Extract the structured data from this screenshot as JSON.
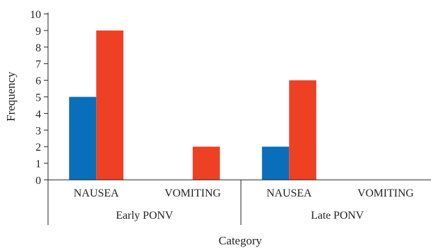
{
  "chart_data": {
    "type": "bar",
    "title": "",
    "xlabel": "Category",
    "ylabel": "Frequency",
    "ylim": [
      0,
      10
    ],
    "yticks": [
      0,
      1,
      2,
      3,
      4,
      5,
      6,
      7,
      8,
      9,
      10
    ],
    "groups": [
      {
        "label": "Early PONV",
        "categories": [
          "NAUSEA",
          "VOMITING"
        ]
      },
      {
        "label": "Late PONV",
        "categories": [
          "NAUSEA",
          "VOMITING"
        ]
      }
    ],
    "categories": [
      "NAUSEA",
      "VOMITING",
      "NAUSEA",
      "VOMITING"
    ],
    "series": [
      {
        "color": "#0a6fba",
        "values": [
          5,
          0,
          2,
          0
        ]
      },
      {
        "color": "#ee4023",
        "values": [
          9,
          2,
          6,
          0
        ]
      }
    ],
    "grid": false,
    "legend": "none"
  }
}
